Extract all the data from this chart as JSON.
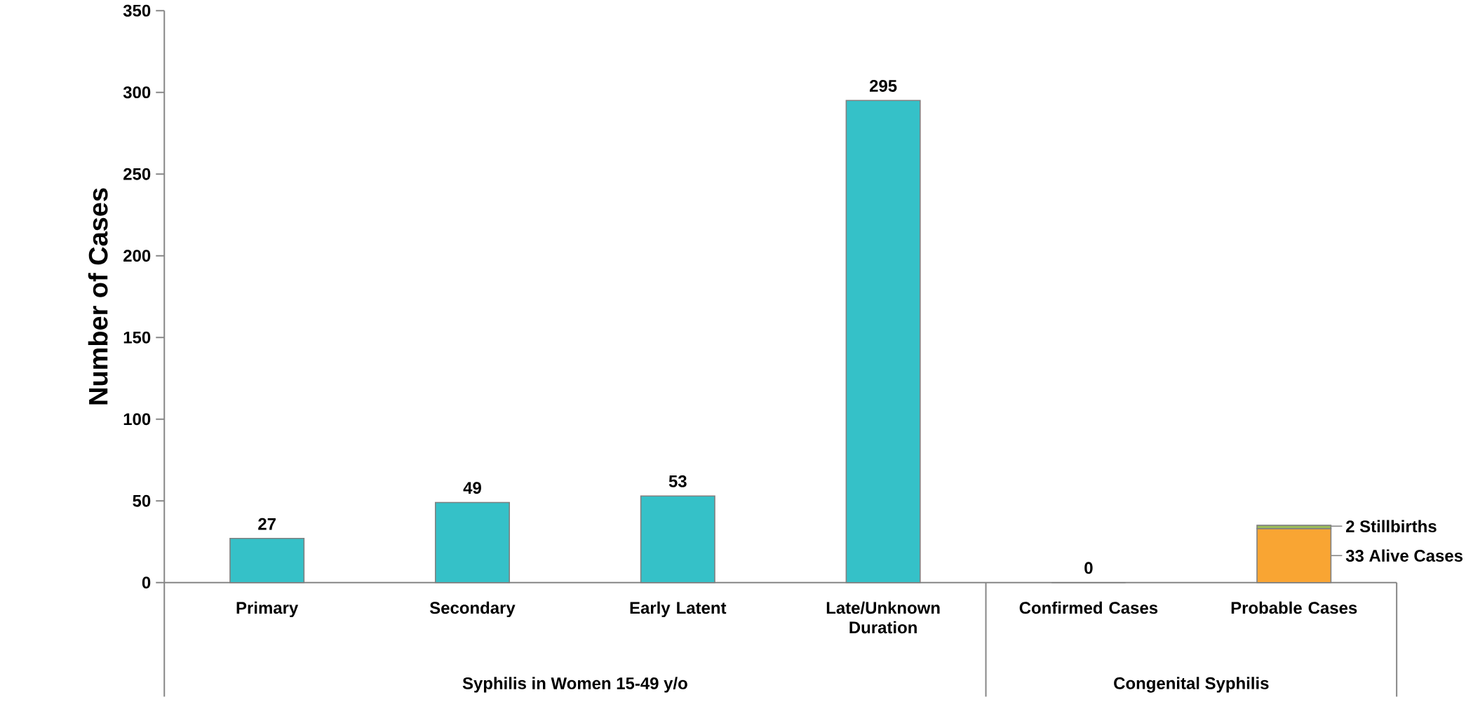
{
  "chart_data": {
    "type": "bar",
    "ylabel": "Number of Cases",
    "categories": [
      "Primary",
      "Secondary",
      "Early Latent",
      "Late/Unknown Duration",
      "Confirmed Cases",
      "Probable Cases"
    ],
    "stacked": true,
    "series": [
      {
        "color": "#35c1c8",
        "values": [
          27,
          49,
          53,
          295,
          0,
          null
        ],
        "value_labels": [
          "27",
          "49",
          "53",
          "295",
          "0",
          null
        ]
      },
      {
        "color": "#f9a533",
        "values": [
          null,
          null,
          null,
          null,
          null,
          33
        ]
      },
      {
        "color": "#9bbb59",
        "values": [
          null,
          null,
          null,
          null,
          null,
          2
        ]
      }
    ],
    "ylim": [
      0,
      350
    ],
    "yticks": [
      0,
      50,
      100,
      150,
      200,
      250,
      300,
      350
    ],
    "annotations": [
      "2 Stillbirths",
      "33 Alive Cases",
      "Syphilis in Women 15-49 y/o",
      "Congenital Syphilis"
    ]
  }
}
